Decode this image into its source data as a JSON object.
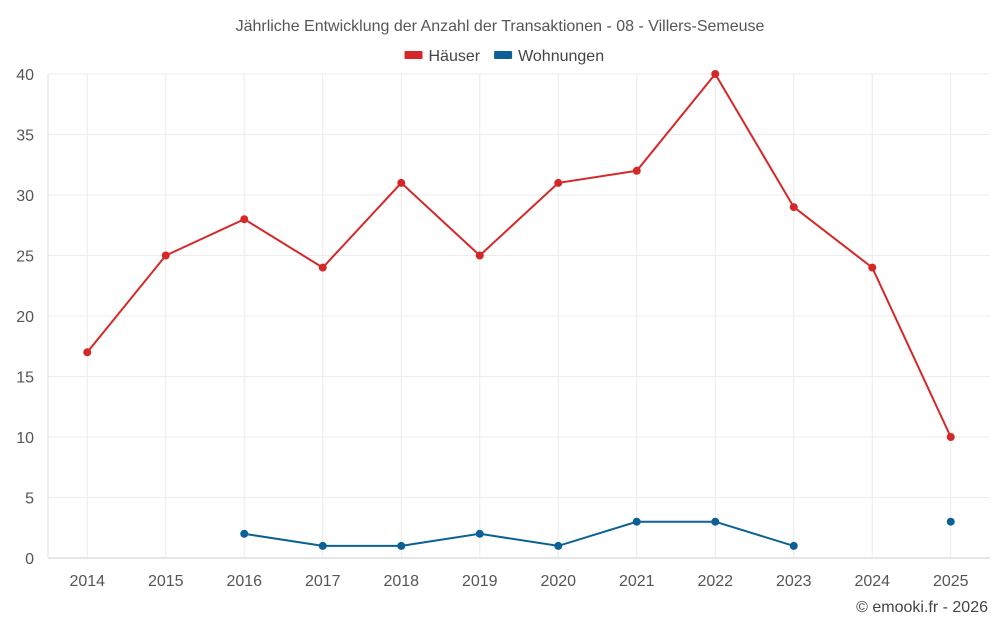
{
  "chart_data": {
    "type": "line",
    "title": "Jährliche Entwicklung der Anzahl der Transaktionen - 08 - Villers-Semeuse",
    "categories": [
      "2014",
      "2015",
      "2016",
      "2017",
      "2018",
      "2019",
      "2020",
      "2021",
      "2022",
      "2023",
      "2024",
      "2025"
    ],
    "ylim": [
      0,
      40
    ],
    "yticks": [
      0,
      5,
      10,
      15,
      20,
      25,
      30,
      35,
      40
    ],
    "xlabel": "",
    "ylabel": "",
    "grid": true,
    "legend_position": "top-center",
    "series": [
      {
        "name": "Häuser",
        "color": "#d62728",
        "values": [
          17,
          25,
          28,
          24,
          31,
          25,
          31,
          32,
          40,
          29,
          24,
          10
        ]
      },
      {
        "name": "Wohnungen",
        "color": "#0b6196",
        "values": [
          null,
          null,
          2,
          1,
          1,
          2,
          1,
          3,
          3,
          1,
          null,
          3
        ]
      }
    ]
  },
  "credit": "© emooki.fr - 2026"
}
